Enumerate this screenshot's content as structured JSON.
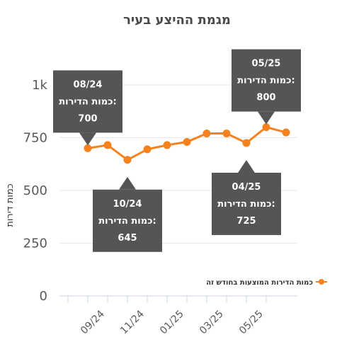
{
  "chart_data": {
    "type": "line",
    "title": "מגמת ההיצע בעיר",
    "ylabel": "כמות דירות",
    "xlabel": "",
    "ylim": [
      0,
      1000
    ],
    "y_ticks": [
      "0",
      "250",
      "500",
      "750",
      "1k"
    ],
    "x_tick_labels": [
      "09/24",
      "11/24",
      "01/25",
      "03/25",
      "05/25"
    ],
    "x": [
      "08/24",
      "09/24",
      "10/24",
      "11/24",
      "12/24",
      "01/25",
      "02/25",
      "03/25",
      "04/25",
      "05/25",
      "06/25"
    ],
    "series": [
      {
        "name": "כמות הדירות המוצעות בחודש זה",
        "color": "#f5821f",
        "values": [
          700,
          715,
          645,
          695,
          715,
          730,
          770,
          770,
          725,
          800,
          775
        ]
      }
    ],
    "grid": true,
    "legend_position": "right",
    "tooltips": [
      {
        "date": "08/24",
        "label": "כמות הדירות:",
        "value": "700"
      },
      {
        "date": "10/24",
        "label": "כמות הדירות:",
        "value": "645"
      },
      {
        "date": "04/25",
        "label": "כמות הדירות:",
        "value": "725"
      },
      {
        "date": "05/25",
        "label": "כמות הדירות:",
        "value": "800"
      }
    ]
  }
}
